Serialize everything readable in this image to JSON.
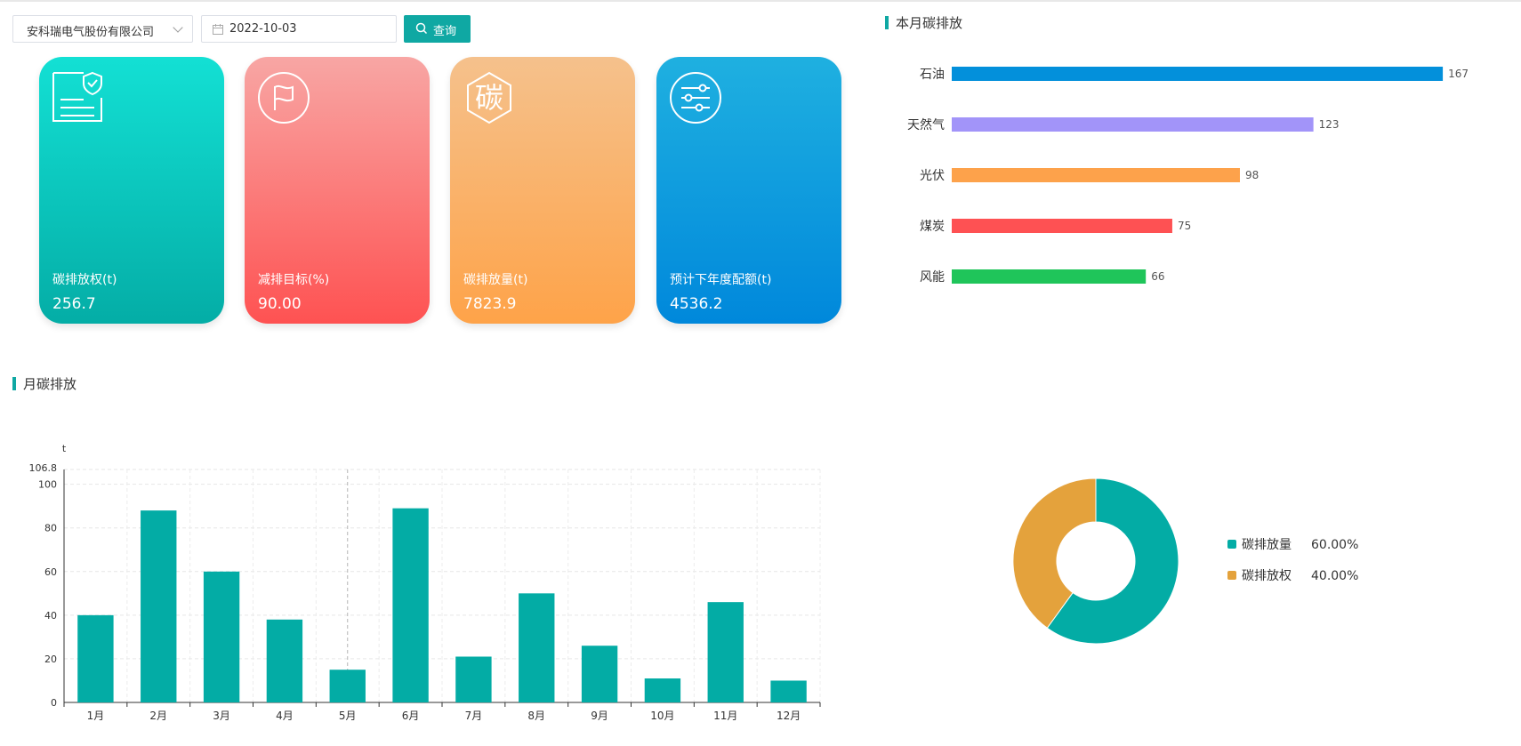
{
  "toolbar": {
    "company": "安科瑞电气股份有限公司",
    "date": "2022-10-03",
    "query_label": "查询"
  },
  "cards": [
    {
      "label": "碳排放权(t)",
      "value": "256.7",
      "icon": "document-shield-icon"
    },
    {
      "label": "减排目标(%)",
      "value": "90.00",
      "icon": "flag-icon"
    },
    {
      "label": "碳排放量(t)",
      "value": "7823.9",
      "icon": "carbon-hexagon-icon",
      "icon_text": "碳"
    },
    {
      "label": "预计下年度配额(t)",
      "value": "4536.2",
      "icon": "sliders-icon"
    }
  ],
  "sections": {
    "monthly_title": "月碳排放",
    "current_month_title": "本月碳排放"
  },
  "chart_data": [
    {
      "type": "bar",
      "orientation": "horizontal",
      "categories": [
        "石油",
        "天然气",
        "光伏",
        "煤炭",
        "风能"
      ],
      "values": [
        167,
        123,
        98,
        75,
        66
      ],
      "colors": [
        "#0390db",
        "#a294f9",
        "#fda24b",
        "#fe5153",
        "#1fc55a"
      ],
      "xlim": [
        0,
        170
      ],
      "grid": false,
      "title": "本月碳排放"
    },
    {
      "type": "bar",
      "categories": [
        "1月",
        "2月",
        "3月",
        "4月",
        "5月",
        "6月",
        "7月",
        "8月",
        "9月",
        "10月",
        "11月",
        "12月"
      ],
      "values": [
        40,
        88,
        60,
        38,
        15,
        89,
        21,
        50,
        26,
        11,
        46,
        10
      ],
      "color": "#03aca5",
      "ylabel": "t",
      "ylim": [
        0,
        106.8
      ],
      "yticks": [
        0,
        20,
        40,
        60,
        80,
        100
      ],
      "ymax_label": "106.8",
      "grid": true,
      "title": "月碳排放"
    },
    {
      "type": "pie",
      "donut": true,
      "labels": [
        "碳排放量",
        "碳排放权"
      ],
      "values": [
        60,
        40
      ],
      "percent_labels": [
        "60.00%",
        "40.00%"
      ],
      "colors": [
        "#03aca5",
        "#e4a23c"
      ],
      "legend": "right"
    }
  ]
}
